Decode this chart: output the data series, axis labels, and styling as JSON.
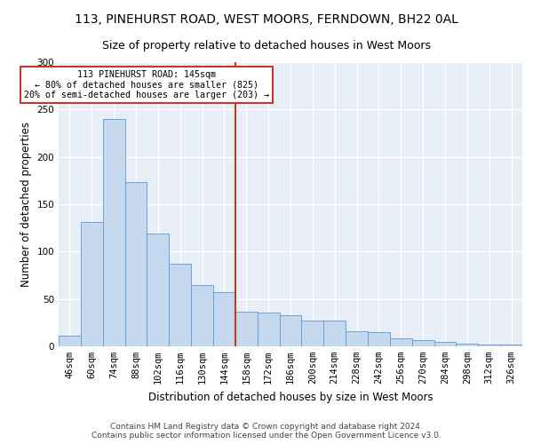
{
  "title1": "113, PINEHURST ROAD, WEST MOORS, FERNDOWN, BH22 0AL",
  "title2": "Size of property relative to detached houses in West Moors",
  "xlabel": "Distribution of detached houses by size in West Moors",
  "ylabel": "Number of detached properties",
  "footer1": "Contains HM Land Registry data © Crown copyright and database right 2024.",
  "footer2": "Contains public sector information licensed under the Open Government Licence v3.0.",
  "bar_labels": [
    "46sqm",
    "60sqm",
    "74sqm",
    "88sqm",
    "102sqm",
    "116sqm",
    "130sqm",
    "144sqm",
    "158sqm",
    "172sqm",
    "186sqm",
    "200sqm",
    "214sqm",
    "228sqm",
    "242sqm",
    "256sqm",
    "270sqm",
    "284sqm",
    "298sqm",
    "312sqm",
    "326sqm"
  ],
  "bar_values": [
    11,
    131,
    240,
    173,
    119,
    87,
    65,
    57,
    37,
    36,
    33,
    27,
    27,
    16,
    15,
    8,
    7,
    5,
    3,
    2,
    2
  ],
  "bar_color": "#c5d8ed",
  "bar_edge_color": "#5b9bd5",
  "vline_color": "#c0392b",
  "annotation_line1": "113 PINEHURST ROAD: 145sqm",
  "annotation_line2": "← 80% of detached houses are smaller (825)",
  "annotation_line3": "20% of semi-detached houses are larger (203) →",
  "annotation_box_color": "#c0392b",
  "ylim": [
    0,
    300
  ],
  "yticks": [
    0,
    50,
    100,
    150,
    200,
    250,
    300
  ],
  "background_color": "#e8eef6",
  "grid_color": "#ffffff",
  "title1_fontsize": 10,
  "title2_fontsize": 9,
  "axis_label_fontsize": 8.5,
  "tick_fontsize": 7.5,
  "footer_fontsize": 6.5
}
